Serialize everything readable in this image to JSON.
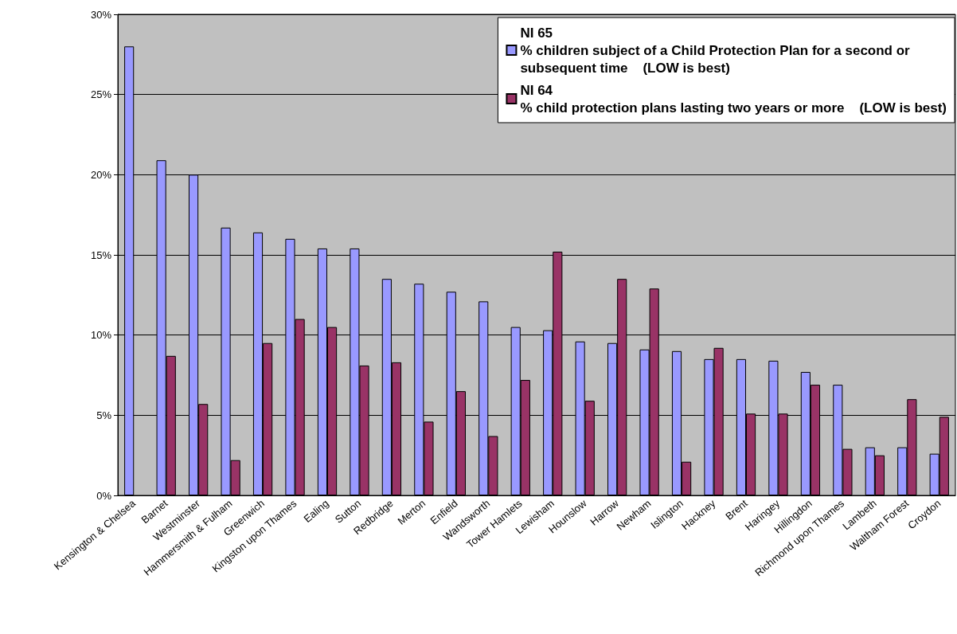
{
  "chart_data": {
    "type": "bar",
    "categories": [
      "Kensington & Chelsea",
      "Barnet",
      "Westminster",
      "Hammersmith & Fulham",
      "Greenwich",
      "Kingston upon Thames",
      "Ealing",
      "Sutton",
      "Redbridge",
      "Merton",
      "Enfield",
      "Wandsworth",
      "Tower Hamlets",
      "Lewisham",
      "Hounslow",
      "Harrow",
      "Newham",
      "Islington",
      "Hackney",
      "Brent",
      "Haringey",
      "Hillingdon",
      "Richmond upon Thames",
      "Lambeth",
      "Waltham Forest",
      "Croydon"
    ],
    "series": [
      {
        "name": "NI 65\n% children subject of a Child Protection Plan for a second or\nsubsequent time    (LOW is best)",
        "color": "#9999ff",
        "values": [
          28,
          20.9,
          20,
          16.7,
          16.4,
          16,
          15.4,
          15.4,
          13.5,
          13.2,
          12.7,
          12.1,
          10.5,
          10.3,
          9.6,
          9.5,
          9.1,
          9,
          8.5,
          8.5,
          8.4,
          7.7,
          6.9,
          3,
          3,
          2.6
        ]
      },
      {
        "name": "NI 64\n% child protection plans lasting two years or more    (LOW is best)",
        "color": "#993366",
        "values": [
          null,
          8.7,
          5.7,
          2.2,
          9.5,
          11,
          10.5,
          8.1,
          8.3,
          4.6,
          6.5,
          3.7,
          7.2,
          15.2,
          5.9,
          13.5,
          12.9,
          2.1,
          9.2,
          5.1,
          5.1,
          6.9,
          2.9,
          2.5,
          6,
          4.9
        ]
      }
    ],
    "ylim": [
      0,
      30
    ],
    "yticks": [
      {
        "value": 0,
        "label": "0%"
      },
      {
        "value": 5,
        "label": "5%"
      },
      {
        "value": 10,
        "label": "10%"
      },
      {
        "value": 15,
        "label": "15%"
      },
      {
        "value": 20,
        "label": "20%"
      },
      {
        "value": 25,
        "label": "25%"
      },
      {
        "value": 30,
        "label": "30%"
      }
    ],
    "grid": "y",
    "legend": "top right"
  }
}
